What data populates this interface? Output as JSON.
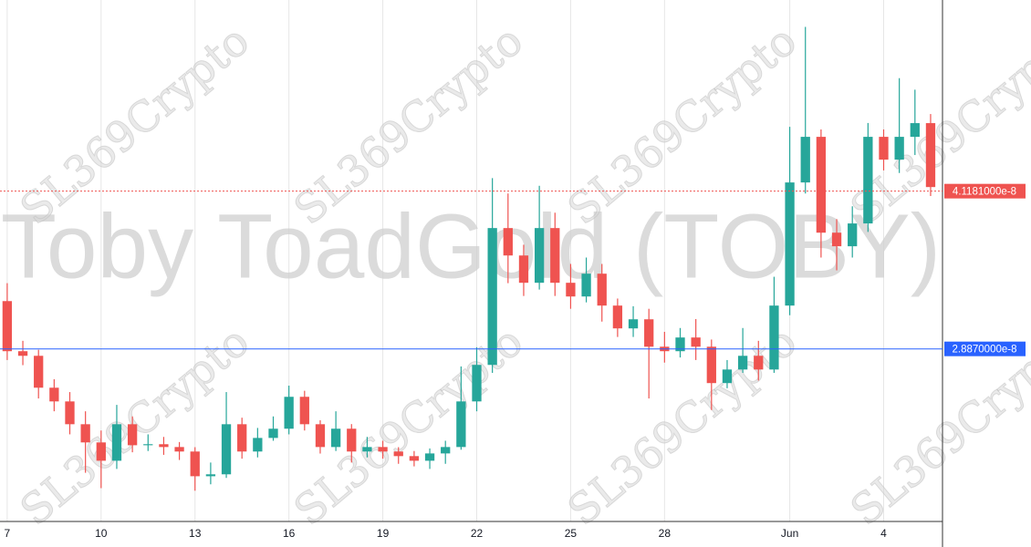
{
  "chart_data": {
    "type": "candlestick",
    "watermark": "Toby ToadGold (TOBY)",
    "watermark_logo": "SL369Crypto",
    "up_color": "#26a69a",
    "down_color": "#ef5350",
    "x": [
      0,
      0.5,
      1,
      1.5,
      2,
      2.5,
      3,
      3.5,
      4,
      4.5,
      5,
      5.5,
      6,
      6.5,
      7,
      7.5,
      8,
      8.5,
      9,
      9.5,
      10,
      10.5,
      11,
      11.5,
      12,
      12.5,
      13,
      13.5,
      14,
      14.5,
      15,
      15.5,
      16,
      16.5,
      17,
      17.5,
      18,
      18.5,
      19,
      19.5,
      20,
      20.5,
      21,
      21.5,
      22,
      22.5,
      23,
      23.5,
      24,
      24.5,
      25,
      25.5,
      26,
      26.5,
      27,
      27.5,
      28,
      28.5,
      29,
      29.5
    ],
    "open": [
      3.26e-08,
      2.869e-08,
      2.833e-08,
      2.584e-08,
      2.477e-08,
      2.299e-08,
      2.157e-08,
      2.014e-08,
      2.299e-08,
      2.135e-08,
      2.143e-08,
      2.121e-08,
      2.086e-08,
      1.893e-08,
      1.908e-08,
      2.299e-08,
      2.086e-08,
      2.192e-08,
      2.264e-08,
      2.513e-08,
      2.299e-08,
      2.121e-08,
      2.264e-08,
      2.086e-08,
      2.121e-08,
      2.086e-08,
      2.05e-08,
      2.014e-08,
      2.071e-08,
      2.121e-08,
      2.477e-08,
      2.762e-08,
      3.83e-08,
      3.616e-08,
      3.403e-08,
      3.83e-08,
      3.403e-08,
      3.296e-08,
      3.474e-08,
      3.225e-08,
      3.047e-08,
      3.118e-08,
      2.904e-08,
      2.869e-08,
      2.976e-08,
      2.904e-08,
      2.62e-08,
      2.726e-08,
      2.833e-08,
      2.726e-08,
      3.225e-08,
      4.186e-08,
      4.542e-08,
      3.794e-08,
      3.688e-08,
      3.866e-08,
      4.542e-08,
      4.364e-08,
      4.542e-08,
      4.649e-08
    ],
    "high": [
      3.4e-08,
      2.95e-08,
      2.88e-08,
      2.65e-08,
      2.55e-08,
      2.4e-08,
      2.25e-08,
      2.45e-08,
      2.36e-08,
      2.22e-08,
      2.2e-08,
      2.16e-08,
      2.12e-08,
      2e-08,
      2.55e-08,
      2.35e-08,
      2.27e-08,
      2.36e-08,
      2.6e-08,
      2.56e-08,
      2.33e-08,
      2.4e-08,
      2.3e-08,
      2.2e-08,
      2.17e-08,
      2.12e-08,
      2.09e-08,
      2.11e-08,
      2.17e-08,
      2.75e-08,
      2.9e-08,
      4.22e-08,
      4.1e-08,
      3.7e-08,
      4.16e-08,
      3.95e-08,
      3.55e-08,
      3.6e-08,
      3.55e-08,
      3.28e-08,
      3.22e-08,
      3.2e-08,
      3.02e-08,
      3.05e-08,
      3.12e-08,
      2.96e-08,
      2.8e-08,
      3.05e-08,
      2.95e-08,
      3.45e-08,
      4.62e-08,
      5.4e-08,
      4.6e-08,
      3.9e-08,
      4e-08,
      4.65e-08,
      4.6e-08,
      5e-08,
      4.91e-08,
      4.72e-08
    ],
    "low": [
      2.8e-08,
      2.76e-08,
      2.5e-08,
      2.4e-08,
      2.22e-08,
      1.92e-08,
      1.8e-08,
      1.95e-08,
      2.08e-08,
      2.09e-08,
      2.06e-08,
      2.02e-08,
      1.78e-08,
      1.83e-08,
      1.88e-08,
      2.03e-08,
      2.04e-08,
      2.17e-08,
      2.22e-08,
      2.25e-08,
      2.07e-08,
      2.09e-08,
      2e-08,
      2.04e-08,
      2.03e-08,
      1.99e-08,
      1.97e-08,
      1.95e-08,
      1.99e-08,
      2.1e-08,
      2.4e-08,
      2.7e-08,
      3.4e-08,
      3.3e-08,
      3.35e-08,
      3.3e-08,
      3.2e-08,
      3.25e-08,
      3.1e-08,
      2.98e-08,
      2.98e-08,
      2.5e-08,
      2.78e-08,
      2.82e-08,
      2.8e-08,
      2.41e-08,
      2.58e-08,
      2.7e-08,
      2.64e-08,
      2.7e-08,
      3.15e-08,
      4.1e-08,
      3.6e-08,
      3.5e-08,
      3.6e-08,
      3.8e-08,
      4.28e-08,
      4.26e-08,
      4.4e-08,
      4.08e-08
    ],
    "close": [
      2.869e-08,
      2.833e-08,
      2.584e-08,
      2.477e-08,
      2.299e-08,
      2.157e-08,
      2.014e-08,
      2.299e-08,
      2.135e-08,
      2.143e-08,
      2.121e-08,
      2.086e-08,
      1.893e-08,
      1.908e-08,
      2.299e-08,
      2.086e-08,
      2.192e-08,
      2.264e-08,
      2.513e-08,
      2.299e-08,
      2.121e-08,
      2.264e-08,
      2.086e-08,
      2.121e-08,
      2.086e-08,
      2.05e-08,
      2.014e-08,
      2.071e-08,
      2.121e-08,
      2.477e-08,
      2.762e-08,
      3.83e-08,
      3.616e-08,
      3.403e-08,
      3.83e-08,
      3.403e-08,
      3.296e-08,
      3.474e-08,
      3.225e-08,
      3.047e-08,
      3.118e-08,
      2.904e-08,
      2.869e-08,
      2.976e-08,
      2.904e-08,
      2.62e-08,
      2.726e-08,
      2.833e-08,
      2.726e-08,
      3.225e-08,
      4.186e-08,
      4.542e-08,
      3.794e-08,
      3.688e-08,
      3.866e-08,
      4.542e-08,
      4.364e-08,
      4.542e-08,
      4.649e-08,
      4.15e-08
    ],
    "xlim": [
      -0.23,
      29.88
    ],
    "xticks": [
      {
        "value": 0,
        "label": "7"
      },
      {
        "value": 3,
        "label": "10"
      },
      {
        "value": 6,
        "label": "13"
      },
      {
        "value": 9,
        "label": "16"
      },
      {
        "value": 12,
        "label": "19"
      },
      {
        "value": 15,
        "label": "22"
      },
      {
        "value": 18,
        "label": "25"
      },
      {
        "value": 21,
        "label": "28"
      },
      {
        "value": 25,
        "label": "Jun"
      },
      {
        "value": 28,
        "label": "4"
      }
    ],
    "ylim": [
      1.54e-08,
      5.61e-08
    ],
    "grid": "x",
    "price_lines": [
      {
        "value": 4.1181e-08,
        "label": "4.1181000e-8",
        "color": "#ef5350",
        "style": "dotted"
      },
      {
        "value": 2.887e-08,
        "label": "2.8870000e-8",
        "color": "#2962ff",
        "style": "solid"
      }
    ]
  }
}
